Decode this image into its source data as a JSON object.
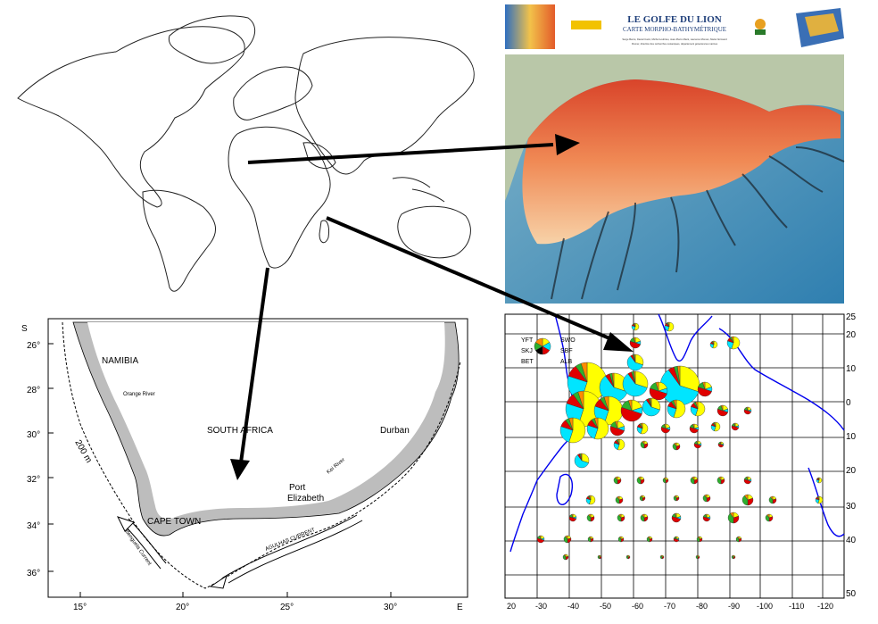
{
  "world_map": {
    "arrow_color": "#000000"
  },
  "gulf_map": {
    "title": "LE GOLFE DU LION",
    "subtitle": "CARTE MORPHO-BATHYMÉTRIQUE",
    "credits_line1": "Serge Berné, Daniel Carré, Michel Loubrieu, Jean-Pierre Mazé, Laurence Morvan, Marie Normand",
    "credits_line2": "Ifremer, direction des recherches océaniques, département géosciences marines"
  },
  "sa_map": {
    "lat_labels": [
      "S",
      "26°",
      "28°",
      "30°",
      "32°",
      "34°",
      "36°"
    ],
    "lon_labels": [
      "15°",
      "20°",
      "25°",
      "30°",
      "E"
    ],
    "places": {
      "namibia": "NAMIBIA",
      "south_africa": "SOUTH AFRICA",
      "orange_river": "Orange River",
      "durban": "Durban",
      "kei_river": "Kei River",
      "port_elizabeth_1": "Port",
      "port_elizabeth_2": "Elizabeth",
      "cape_town": "CAPE TOWN",
      "depth_contour": "200 m",
      "agulhas": "AGULHAS CURRENT",
      "benguela": "Benguela Current"
    },
    "land_color": "#bdbdbd"
  },
  "tuna_map": {
    "legend": {
      "species": [
        "YFT",
        "SKJ",
        "BET",
        "SWO",
        "SBF",
        "ALB"
      ],
      "colors": {
        "YFT": "#ffff00",
        "SKJ": "#00e5ff",
        "BET": "#e00000",
        "SWO": "#000000",
        "SBF": "#2db02d",
        "ALB": "#ff8c00"
      }
    },
    "right_axis": [
      "25",
      "20",
      "10",
      "0",
      "10",
      "20",
      "30",
      "40",
      "50"
    ],
    "bottom_axis": [
      "20",
      "-30",
      "-40",
      "-50",
      "-60",
      "-70",
      "-80",
      "-90",
      "-100",
      "-110",
      "-120"
    ],
    "coast_color": "#0000ee"
  }
}
